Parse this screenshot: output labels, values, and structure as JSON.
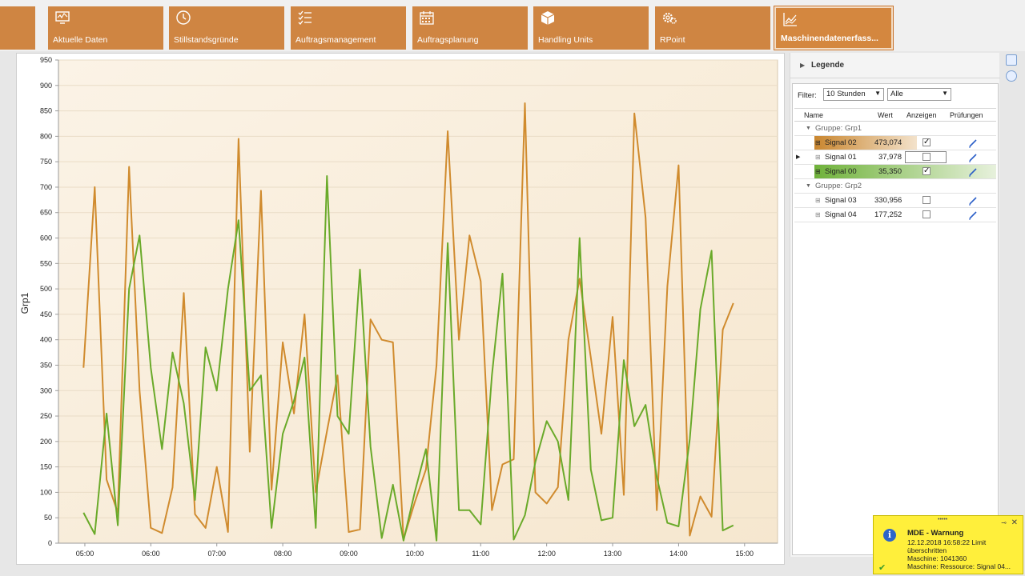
{
  "ribbon": {
    "tiles": [
      {
        "label": "",
        "icon": "blank-icon"
      },
      {
        "label": "Aktuelle Daten",
        "icon": "monitor-icon"
      },
      {
        "label": "Stillstandsgründe",
        "icon": "clock-icon"
      },
      {
        "label": "Auftragsmanagement",
        "icon": "checklist-icon"
      },
      {
        "label": "Auftragsplanung",
        "icon": "calendar-icon"
      },
      {
        "label": "Handling Units",
        "icon": "box-icon"
      },
      {
        "label": "RPoint",
        "icon": "gears-icon"
      },
      {
        "label": "Maschinendatenerfass...",
        "icon": "line-chart-icon"
      }
    ]
  },
  "chart_data": {
    "type": "line",
    "ylabel": "Grp1",
    "ylim": [
      0,
      950
    ],
    "yticks": [
      0,
      50,
      100,
      150,
      200,
      250,
      300,
      350,
      400,
      450,
      500,
      550,
      600,
      650,
      700,
      750,
      800,
      850,
      900,
      950
    ],
    "xticks": [
      "05:00",
      "06:00",
      "07:00",
      "08:00",
      "09:00",
      "10:00",
      "11:00",
      "12:00",
      "13:00",
      "14:00",
      "15:00"
    ],
    "xlim_hours": [
      4.6,
      15.5
    ],
    "grid": true,
    "series": [
      {
        "name": "Signal 02",
        "color": "#d08b2e",
        "x": [
          4.98,
          5.15,
          5.33,
          5.5,
          5.67,
          5.83,
          6.0,
          6.17,
          6.33,
          6.5,
          6.67,
          6.83,
          7.0,
          7.17,
          7.33,
          7.5,
          7.67,
          7.83,
          8.0,
          8.17,
          8.33,
          8.5,
          8.67,
          8.83,
          9.0,
          9.17,
          9.33,
          9.5,
          9.67,
          9.83,
          10.0,
          10.17,
          10.33,
          10.5,
          10.67,
          10.83,
          11.0,
          11.17,
          11.33,
          11.5,
          11.67,
          11.83,
          12.0,
          12.17,
          12.33,
          12.5,
          12.67,
          12.83,
          13.0,
          13.17,
          13.33,
          13.5,
          13.67,
          13.83,
          14.0,
          14.17,
          14.33,
          14.5,
          14.67,
          14.83
        ],
        "values": [
          345,
          700,
          125,
          60,
          740,
          300,
          30,
          20,
          110,
          492,
          57,
          30,
          150,
          22,
          795,
          180,
          693,
          105,
          395,
          255,
          450,
          100,
          220,
          330,
          22,
          27,
          440,
          400,
          395,
          8,
          80,
          145,
          350,
          810,
          400,
          605,
          515,
          65,
          155,
          165,
          865,
          100,
          78,
          110,
          400,
          520,
          365,
          215,
          445,
          95,
          845,
          640,
          65,
          505,
          743,
          15,
          92,
          52,
          420,
          472
        ]
      },
      {
        "name": "Signal 00",
        "color": "#6aaa2a",
        "x": [
          4.98,
          5.15,
          5.33,
          5.5,
          5.67,
          5.83,
          6.0,
          6.17,
          6.33,
          6.5,
          6.67,
          6.83,
          7.0,
          7.17,
          7.33,
          7.5,
          7.67,
          7.83,
          8.0,
          8.17,
          8.33,
          8.5,
          8.67,
          8.83,
          9.0,
          9.17,
          9.33,
          9.5,
          9.67,
          9.83,
          10.0,
          10.17,
          10.33,
          10.5,
          10.67,
          10.83,
          11.0,
          11.17,
          11.33,
          11.5,
          11.67,
          11.83,
          12.0,
          12.17,
          12.33,
          12.5,
          12.67,
          12.83,
          13.0,
          13.17,
          13.33,
          13.5,
          13.67,
          13.83,
          14.0,
          14.17,
          14.33,
          14.5,
          14.67,
          14.83
        ],
        "values": [
          60,
          18,
          255,
          35,
          500,
          605,
          345,
          185,
          375,
          275,
          85,
          385,
          300,
          500,
          635,
          300,
          330,
          30,
          215,
          280,
          365,
          30,
          722,
          250,
          215,
          538,
          190,
          10,
          115,
          5,
          100,
          185,
          5,
          590,
          65,
          65,
          37,
          330,
          530,
          7,
          55,
          160,
          240,
          200,
          85,
          600,
          145,
          45,
          50,
          360,
          230,
          272,
          130,
          40,
          33,
          205,
          460,
          575,
          25,
          35
        ]
      }
    ]
  },
  "legend": {
    "title": "Legende",
    "filter_label": "Filter:",
    "filter_time": "10 Stunden",
    "filter_scope": "Alle",
    "columns": [
      "Name",
      "Wert",
      "Anzeigen",
      "Prüfungen"
    ],
    "groups": [
      {
        "name": "Gruppe: Grp1",
        "rows": [
          {
            "name": "Signal 02",
            "value": "473,074",
            "checked": true,
            "color": "#c9862f"
          },
          {
            "name": "Signal 01",
            "value": "37,978",
            "checked": false,
            "color": ""
          },
          {
            "name": "Signal 00",
            "value": "35,350",
            "checked": true,
            "color": "#6fb23a"
          }
        ]
      },
      {
        "name": "Gruppe: Grp2",
        "rows": [
          {
            "name": "Signal 03",
            "value": "330,956",
            "checked": false,
            "color": ""
          },
          {
            "name": "Signal 04",
            "value": "177,252",
            "checked": false,
            "color": ""
          }
        ]
      }
    ]
  },
  "toast": {
    "grip": "•••••",
    "title": "MDE - Warnung",
    "line1": "12.12.2018 16:58:22 Limit",
    "line2": "überschritten",
    "line3": "Maschine: 1041360",
    "line4": "Maschine: Ressource: Signal 04..."
  }
}
